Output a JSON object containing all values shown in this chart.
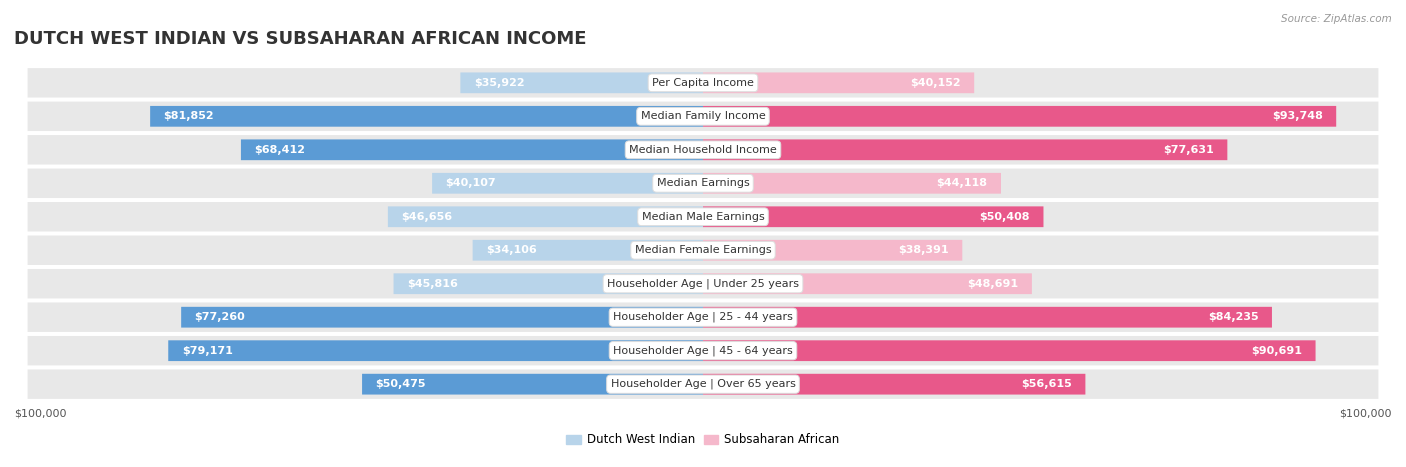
{
  "title": "DUTCH WEST INDIAN VS SUBSAHARAN AFRICAN INCOME",
  "source": "Source: ZipAtlas.com",
  "categories": [
    "Per Capita Income",
    "Median Family Income",
    "Median Household Income",
    "Median Earnings",
    "Median Male Earnings",
    "Median Female Earnings",
    "Householder Age | Under 25 years",
    "Householder Age | 25 - 44 years",
    "Householder Age | 45 - 64 years",
    "Householder Age | Over 65 years"
  ],
  "dutch_values": [
    35922,
    81852,
    68412,
    40107,
    46656,
    34106,
    45816,
    77260,
    79171,
    50475
  ],
  "subsaharan_values": [
    40152,
    93748,
    77631,
    44118,
    50408,
    38391,
    48691,
    84235,
    90691,
    56615
  ],
  "dutch_labels": [
    "$35,922",
    "$81,852",
    "$68,412",
    "$40,107",
    "$46,656",
    "$34,106",
    "$45,816",
    "$77,260",
    "$79,171",
    "$50,475"
  ],
  "subsaharan_labels": [
    "$40,152",
    "$93,748",
    "$77,631",
    "$44,118",
    "$50,408",
    "$38,391",
    "$48,691",
    "$84,235",
    "$90,691",
    "$56,615"
  ],
  "dutch_color_light": "#b8d4ea",
  "dutch_color_dark": "#5b9bd5",
  "subsaharan_color_light": "#f5b8cb",
  "subsaharan_color_dark": "#e8588a",
  "dutch_inside_threshold": 50000,
  "subsaharan_inside_threshold": 50000,
  "max_value": 100000,
  "background_color": "#ffffff",
  "row_bg_color": "#e8e8e8",
  "xlabel_left": "$100,000",
  "xlabel_right": "$100,000",
  "legend_dutch": "Dutch West Indian",
  "legend_subsaharan": "Subsaharan African",
  "title_fontsize": 13,
  "label_fontsize": 8,
  "category_fontsize": 8
}
